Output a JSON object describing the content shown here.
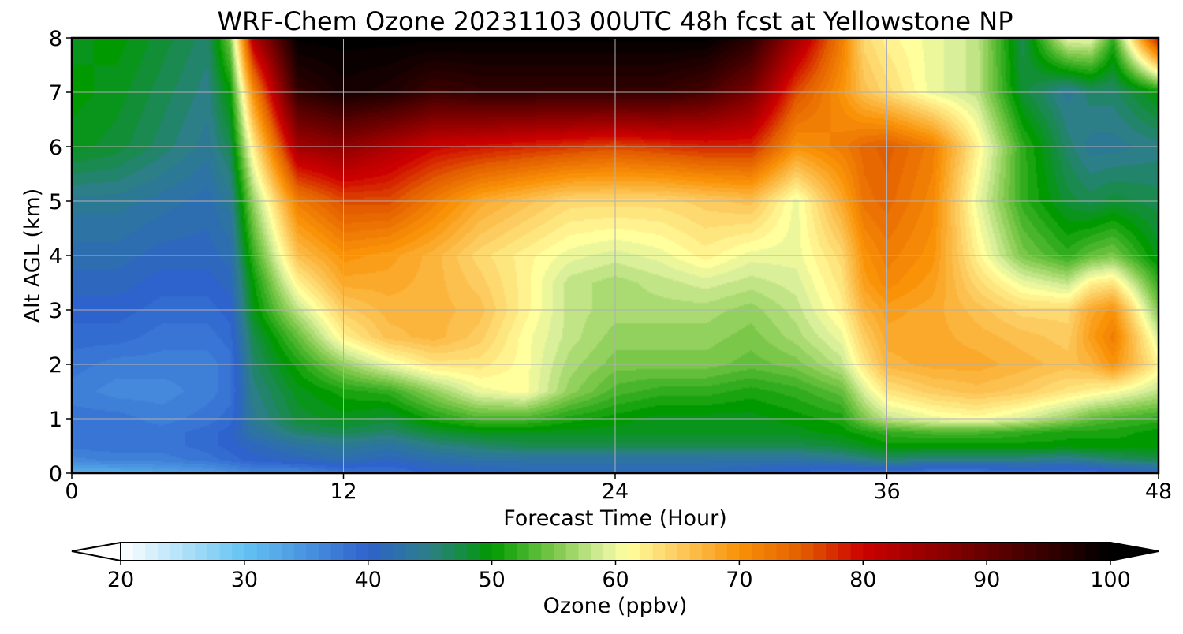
{
  "chart_data": {
    "type": "heatmap",
    "title": "WRF-Chem Ozone  20231103 00UTC 48h fcst at Yellowstone NP",
    "xlabel": "Forecast Time (Hour)",
    "ylabel": "Alt AGL (km)",
    "xlim": [
      0,
      48
    ],
    "ylim": [
      0,
      8
    ],
    "x_ticks": [
      0,
      12,
      24,
      36,
      48
    ],
    "y_ticks": [
      0,
      1,
      2,
      3,
      4,
      5,
      6,
      7,
      8
    ],
    "grid": true,
    "colorbar": {
      "label": "Ozone  (ppbv)",
      "min": 20,
      "max": 100,
      "ticks": [
        20,
        30,
        40,
        50,
        60,
        70,
        80,
        90,
        100
      ],
      "extend": "both",
      "stops": [
        {
          "v": 20,
          "c": "#ffffff"
        },
        {
          "v": 30,
          "c": "#64c3f3"
        },
        {
          "v": 40,
          "c": "#2e62cc"
        },
        {
          "v": 45,
          "c": "#2c7f87"
        },
        {
          "v": 50,
          "c": "#009a00"
        },
        {
          "v": 55,
          "c": "#7ac74a"
        },
        {
          "v": 59,
          "c": "#d9ef9a"
        },
        {
          "v": 61,
          "c": "#ffff9e"
        },
        {
          "v": 65,
          "c": "#fdcc60"
        },
        {
          "v": 70,
          "c": "#f99207"
        },
        {
          "v": 75,
          "c": "#e35e00"
        },
        {
          "v": 80,
          "c": "#cc0000"
        },
        {
          "v": 90,
          "c": "#660000"
        },
        {
          "v": 100,
          "c": "#000000"
        }
      ]
    },
    "x": [
      0,
      2,
      4,
      6,
      7,
      8,
      10,
      12,
      14,
      16,
      18,
      20,
      22,
      24,
      26,
      28,
      30,
      32,
      34,
      35,
      36,
      38,
      40,
      42,
      44,
      45,
      46,
      48
    ],
    "y": [
      0,
      0.25,
      0.5,
      0.75,
      1,
      1.5,
      2,
      2.5,
      3,
      3.5,
      4,
      5,
      6,
      7,
      8
    ],
    "z": [
      [
        32,
        32,
        33,
        34,
        35,
        36,
        36,
        38,
        38,
        40,
        40,
        41,
        41,
        41,
        41,
        41,
        40,
        39,
        38,
        38,
        38,
        37,
        37,
        38,
        38,
        38,
        39,
        40
      ],
      [
        36,
        37,
        37,
        38,
        39,
        40,
        41,
        42,
        41,
        42,
        43,
        43,
        43,
        43,
        43,
        43,
        43,
        43,
        44,
        45,
        46,
        45,
        45,
        45,
        44,
        45,
        46,
        47
      ],
      [
        38,
        38,
        38,
        39,
        40,
        41,
        43,
        44,
        43,
        45,
        46,
        47,
        47,
        47,
        47,
        47,
        47,
        47,
        48,
        49,
        50,
        50,
        50,
        50,
        50,
        50,
        50,
        50
      ],
      [
        38,
        38,
        38,
        39,
        40,
        43,
        46,
        47,
        46,
        48,
        49,
        49,
        49,
        49,
        49,
        49,
        49,
        49,
        50,
        51,
        52,
        53,
        53,
        52,
        51,
        51,
        51,
        50
      ],
      [
        38,
        38,
        37,
        38,
        39,
        44,
        48,
        49,
        48,
        51,
        53,
        53,
        51,
        50,
        49,
        49,
        49,
        50,
        51,
        55,
        58,
        60,
        61,
        59,
        56,
        54,
        53,
        52
      ],
      [
        37,
        36,
        36,
        37,
        38,
        45,
        49,
        51,
        52,
        56,
        60,
        61,
        56,
        53,
        52,
        52,
        51,
        52,
        54,
        59,
        63,
        65,
        66,
        65,
        63,
        62,
        61,
        58
      ],
      [
        38,
        37,
        37,
        37,
        38,
        46,
        51,
        56,
        60,
        63,
        63,
        61,
        57,
        55,
        55,
        55,
        54,
        55,
        58,
        63,
        67,
        68,
        68,
        67,
        66,
        67,
        70,
        62
      ],
      [
        39,
        39,
        38,
        38,
        39,
        47,
        54,
        62,
        66,
        67,
        65,
        61,
        58,
        56,
        56,
        56,
        55,
        57,
        60,
        65,
        68,
        68,
        67,
        66,
        65,
        69,
        72,
        59
      ],
      [
        40,
        40,
        39,
        39,
        40,
        49,
        58,
        65,
        67,
        67,
        66,
        62,
        58,
        57,
        57,
        57,
        56,
        58,
        62,
        67,
        69,
        68,
        66,
        64,
        64,
        68,
        70,
        55
      ],
      [
        41,
        41,
        40,
        40,
        41,
        50,
        62,
        68,
        68,
        67,
        65,
        62,
        58,
        57,
        58,
        59,
        58,
        59,
        63,
        69,
        71,
        69,
        64,
        60,
        58,
        62,
        63,
        52
      ],
      [
        42,
        42,
        41,
        41,
        42,
        52,
        66,
        70,
        69,
        67,
        64,
        62,
        60,
        59,
        60,
        62,
        60,
        60,
        64,
        70,
        72,
        70,
        62,
        55,
        52,
        54,
        55,
        49
      ],
      [
        44,
        44,
        43,
        42,
        44,
        56,
        72,
        76,
        76,
        72,
        68,
        66,
        64,
        64,
        64,
        65,
        66,
        60,
        68,
        73,
        74,
        71,
        60,
        52,
        48,
        47,
        48,
        47
      ],
      [
        49,
        48,
        46,
        44,
        47,
        62,
        84,
        86,
        83,
        80,
        79,
        78,
        77,
        76,
        77,
        78,
        78,
        70,
        72,
        74,
        75,
        72,
        62,
        52,
        46,
        44,
        44,
        45
      ],
      [
        50,
        49,
        47,
        45,
        50,
        70,
        95,
        98,
        97,
        94,
        95,
        95,
        95,
        95,
        95,
        93,
        88,
        76,
        70,
        66,
        64,
        60,
        58,
        48,
        44,
        46,
        46,
        50
      ],
      [
        49,
        50,
        48,
        46,
        55,
        82,
        100,
        100,
        100,
        100,
        100,
        100,
        100,
        100,
        100,
        100,
        96,
        84,
        72,
        64,
        62,
        60,
        58,
        47,
        60,
        60,
        52,
        80
      ]
    ]
  }
}
